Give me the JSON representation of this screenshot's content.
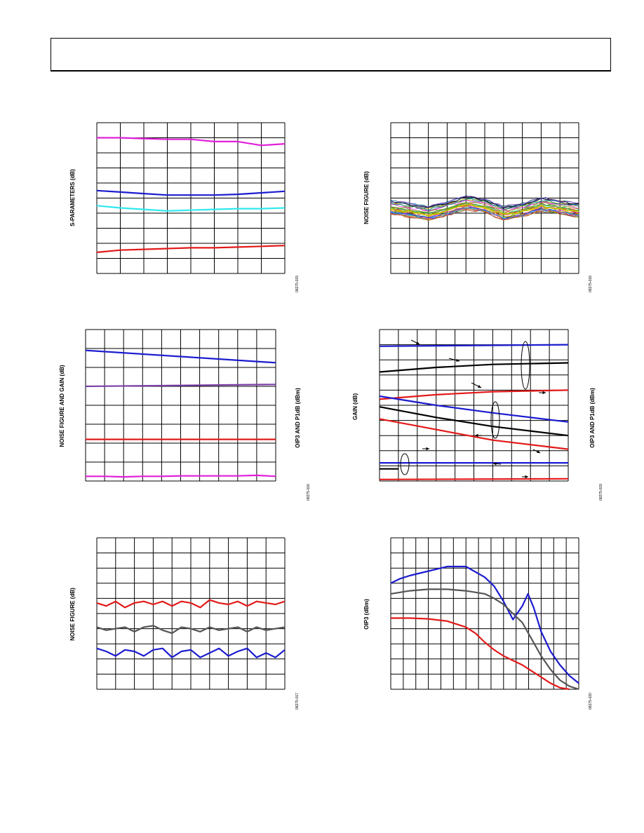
{
  "page": {
    "header": ""
  },
  "colors": {
    "magenta": "#e020d8",
    "blue": "#1c1ccf",
    "cyan": "#30e8ee",
    "red": "#e21a1a",
    "purple": "#7a3ea8",
    "gray": "#555555",
    "black": "#000000"
  },
  "charts": [
    {
      "ylabel": "S-PARAMETERS (dB)",
      "fig_id": "08275-015"
    },
    {
      "ylabel": "NOISE FIGURE (dB)",
      "fig_id": "08275-018"
    },
    {
      "ylabel": "NOISE FIGURE AND GAIN (dB)",
      "ylabel2": "OIP3 AND P1dB (dBm)",
      "fig_id": "08275-016"
    },
    {
      "ylabel": "GAIN (dB)",
      "ylabel2": "OIP3 AND P1dB (dBm)",
      "fig_id": "08275-019"
    },
    {
      "ylabel": "NOISE FIGURE (dB)",
      "fig_id": "08275-017"
    },
    {
      "ylabel": "OIP3 (dBm)",
      "fig_id": "08275-020"
    }
  ],
  "chart_data": [
    {
      "type": "line",
      "ylim": [
        0,
        10
      ],
      "xlim": [
        0,
        8
      ],
      "grid": true,
      "series": [
        {
          "color": "magenta",
          "x": [
            0,
            1,
            2,
            3,
            4,
            5,
            6,
            7,
            8
          ],
          "y": [
            9.0,
            9.0,
            8.95,
            8.9,
            8.9,
            8.75,
            8.75,
            8.5,
            8.6
          ]
        },
        {
          "color": "blue",
          "x": [
            0,
            1,
            2,
            3,
            4,
            5,
            6,
            7,
            8
          ],
          "y": [
            5.5,
            5.4,
            5.3,
            5.2,
            5.2,
            5.2,
            5.25,
            5.35,
            5.45
          ]
        },
        {
          "color": "cyan",
          "x": [
            0,
            1,
            2,
            3,
            4,
            5,
            6,
            7,
            8
          ],
          "y": [
            4.5,
            4.35,
            4.25,
            4.15,
            4.2,
            4.25,
            4.3,
            4.3,
            4.35
          ]
        },
        {
          "color": "red",
          "x": [
            0,
            1,
            2,
            3,
            4,
            5,
            6,
            7,
            8
          ],
          "y": [
            1.4,
            1.55,
            1.6,
            1.65,
            1.7,
            1.7,
            1.75,
            1.8,
            1.85
          ]
        }
      ]
    },
    {
      "type": "line",
      "ylim": [
        0,
        10
      ],
      "xlim": [
        0,
        10
      ],
      "grid": true,
      "series_count": 30,
      "band": {
        "center": [
          4.4,
          4.2,
          4.0,
          4.3,
          4.7,
          4.5,
          4.0,
          4.2,
          4.6,
          4.4,
          4.2
        ],
        "spread": 0.9
      }
    },
    {
      "type": "line",
      "ylim": [
        0,
        8
      ],
      "xlim": [
        0,
        10
      ],
      "grid": true,
      "series": [
        {
          "color": "blue",
          "x": [
            0,
            10
          ],
          "y": [
            6.9,
            6.25
          ]
        },
        {
          "color": "purple",
          "x": [
            0,
            10
          ],
          "y": [
            5.0,
            5.1
          ]
        },
        {
          "color": "red",
          "x": [
            0,
            10
          ],
          "y": [
            2.2,
            2.2
          ]
        },
        {
          "color": "magenta",
          "x": [
            0,
            1,
            2,
            3,
            4,
            5,
            6,
            7,
            8,
            9,
            10
          ],
          "y": [
            0.25,
            0.25,
            0.22,
            0.25,
            0.25,
            0.27,
            0.27,
            0.27,
            0.27,
            0.3,
            0.25
          ]
        }
      ]
    },
    {
      "type": "line",
      "ylim": [
        0,
        10
      ],
      "xlim": [
        0,
        10
      ],
      "grid": true,
      "series": [
        {
          "color": "blue",
          "x": [
            0,
            10
          ],
          "y": [
            8.9,
            9.0
          ]
        },
        {
          "color": "black",
          "x": [
            0,
            3,
            6,
            10
          ],
          "y": [
            7.2,
            7.5,
            7.7,
            7.8
          ]
        },
        {
          "color": "red",
          "x": [
            0,
            3,
            6,
            10
          ],
          "y": [
            5.4,
            5.7,
            5.9,
            6.0
          ]
        },
        {
          "color": "blue",
          "x": [
            0,
            3,
            6,
            10
          ],
          "y": [
            5.6,
            5.0,
            4.5,
            3.9
          ]
        },
        {
          "color": "black",
          "x": [
            0,
            3,
            6,
            10
          ],
          "y": [
            4.9,
            4.2,
            3.6,
            3.0
          ]
        },
        {
          "color": "red",
          "x": [
            0,
            3,
            6,
            10
          ],
          "y": [
            4.1,
            3.4,
            2.7,
            2.1
          ]
        },
        {
          "color": "blue",
          "x": [
            0,
            10
          ],
          "y": [
            1.2,
            1.2
          ]
        },
        {
          "color": "black",
          "x": [
            0,
            1
          ],
          "y": [
            0.8,
            0.8
          ]
        },
        {
          "color": "red",
          "x": [
            0,
            10
          ],
          "y": [
            0.1,
            0.15
          ]
        }
      ]
    },
    {
      "type": "line",
      "ylim": [
        0,
        10
      ],
      "xlim": [
        0,
        10
      ],
      "grid": true,
      "series": [
        {
          "color": "red",
          "x": [
            0,
            0.5,
            1,
            1.5,
            2,
            2.5,
            3,
            3.5,
            4,
            4.5,
            5,
            5.5,
            6,
            6.5,
            7,
            7.5,
            8,
            8.5,
            9,
            9.5,
            10
          ],
          "y": [
            5.7,
            5.5,
            5.8,
            5.4,
            5.7,
            5.8,
            5.6,
            5.8,
            5.5,
            5.8,
            5.7,
            5.4,
            5.9,
            5.7,
            5.6,
            5.8,
            5.5,
            5.8,
            5.7,
            5.6,
            5.8
          ]
        },
        {
          "color": "gray",
          "x": [
            0,
            0.5,
            1,
            1.5,
            2,
            2.5,
            3,
            3.5,
            4,
            4.5,
            5,
            5.5,
            6,
            6.5,
            7,
            7.5,
            8,
            8.5,
            9,
            9.5,
            10
          ],
          "y": [
            4.1,
            3.9,
            4.0,
            4.1,
            3.8,
            4.1,
            4.2,
            3.9,
            3.7,
            4.1,
            4.0,
            3.8,
            4.1,
            3.9,
            4.0,
            4.1,
            3.8,
            4.1,
            3.9,
            4.0,
            4.1
          ]
        },
        {
          "color": "blue",
          "x": [
            0,
            0.5,
            1,
            1.5,
            2,
            2.5,
            3,
            3.5,
            4,
            4.5,
            5,
            5.5,
            6,
            6.5,
            7,
            7.5,
            8,
            8.5,
            9,
            9.5,
            10
          ],
          "y": [
            2.7,
            2.5,
            2.2,
            2.6,
            2.5,
            2.2,
            2.6,
            2.7,
            2.1,
            2.5,
            2.6,
            2.1,
            2.4,
            2.7,
            2.2,
            2.5,
            2.7,
            2.1,
            2.4,
            2.1,
            2.6
          ]
        }
      ]
    },
    {
      "type": "line",
      "ylim": [
        0,
        10
      ],
      "xlim": [
        0,
        10
      ],
      "grid": true,
      "series": [
        {
          "color": "blue",
          "x": [
            0,
            0.5,
            1,
            2,
            3,
            4,
            5,
            5.5,
            6,
            6.5,
            7,
            7.3,
            7.6,
            8,
            8.5,
            9,
            9.5,
            10
          ],
          "y": [
            7.0,
            7.3,
            7.5,
            7.8,
            8.1,
            8.1,
            7.4,
            6.8,
            5.8,
            4.6,
            5.5,
            6.3,
            5.4,
            3.8,
            2.5,
            1.6,
            0.9,
            0.4
          ]
        },
        {
          "color": "gray",
          "x": [
            0,
            0.5,
            1,
            2,
            3,
            4,
            5,
            5.5,
            6,
            6.5,
            7,
            7.5,
            8,
            8.5,
            9,
            9.5,
            10
          ],
          "y": [
            6.3,
            6.4,
            6.5,
            6.6,
            6.6,
            6.5,
            6.3,
            6.0,
            5.6,
            5.0,
            4.4,
            3.3,
            2.2,
            1.3,
            0.6,
            0.2,
            0.0
          ]
        },
        {
          "color": "red",
          "x": [
            0,
            0.5,
            1,
            2,
            3,
            4,
            4.5,
            5,
            5.5,
            6,
            6.5,
            7,
            7.5,
            8,
            8.5,
            9,
            9.5
          ],
          "y": [
            4.7,
            4.7,
            4.7,
            4.65,
            4.5,
            4.1,
            3.7,
            3.1,
            2.6,
            2.2,
            1.9,
            1.6,
            1.2,
            0.8,
            0.4,
            0.1,
            0.0
          ]
        }
      ]
    }
  ]
}
